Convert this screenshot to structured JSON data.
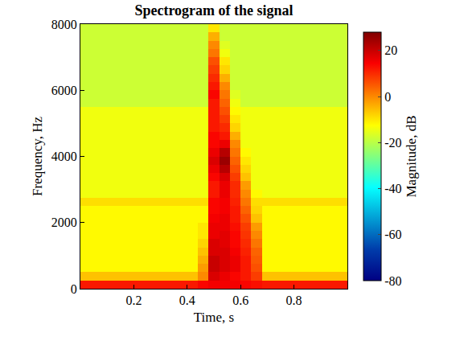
{
  "chart_data": {
    "type": "heatmap",
    "title": "Spectrogram of the signal",
    "x_label": "Time, s",
    "y_label": "Frequency, Hz",
    "x": [
      0.02,
      0.06,
      0.1,
      0.14,
      0.18,
      0.22,
      0.26,
      0.3,
      0.34,
      0.38,
      0.42,
      0.46,
      0.5,
      0.54,
      0.58,
      0.62,
      0.66,
      0.7,
      0.74,
      0.78,
      0.82,
      0.86,
      0.9,
      0.94,
      0.98
    ],
    "y": [
      125,
      375,
      625,
      875,
      1125,
      1375,
      1625,
      1875,
      2125,
      2375,
      2625,
      2875,
      3125,
      3375,
      3625,
      3875,
      4125,
      4375,
      4625,
      4875,
      5125,
      5375,
      5625,
      5875,
      6125,
      6375,
      6625,
      6875,
      7125,
      7375,
      7625,
      7875
    ],
    "z": [
      [
        12,
        12,
        12,
        12,
        12,
        12,
        12,
        12,
        12,
        12,
        12,
        14,
        15,
        15,
        15,
        14,
        13,
        12,
        12,
        12,
        12,
        12,
        12,
        12,
        12
      ],
      [
        -6,
        -6,
        -6,
        -6,
        -6,
        -6,
        -6,
        -6,
        -6,
        -6,
        -6,
        0,
        18,
        16,
        14,
        12,
        8,
        -6,
        -6,
        -6,
        -6,
        -6,
        -6,
        -6,
        -6
      ],
      [
        -12,
        -12,
        -12,
        -12,
        -12,
        -12,
        -12,
        -12,
        -12,
        -12,
        -12,
        -2,
        20,
        18,
        16,
        12,
        6,
        -12,
        -12,
        -12,
        -12,
        -12,
        -12,
        -12,
        -12
      ],
      [
        -12,
        -12,
        -12,
        -12,
        -12,
        -12,
        -12,
        -12,
        -12,
        -12,
        -12,
        -4,
        20,
        18,
        16,
        12,
        5,
        -12,
        -12,
        -12,
        -12,
        -12,
        -12,
        -12,
        -12
      ],
      [
        -12,
        -12,
        -12,
        -12,
        -12,
        -12,
        -12,
        -12,
        -12,
        -12,
        -12,
        -6,
        18,
        18,
        15,
        11,
        4,
        -12,
        -12,
        -12,
        -12,
        -12,
        -12,
        -12,
        -12
      ],
      [
        -12,
        -12,
        -12,
        -12,
        -12,
        -12,
        -12,
        -12,
        -12,
        -12,
        -12,
        -8,
        18,
        17,
        14,
        10,
        2,
        -12,
        -12,
        -12,
        -12,
        -12,
        -12,
        -12,
        -12
      ],
      [
        -12,
        -12,
        -12,
        -12,
        -12,
        -12,
        -12,
        -12,
        -12,
        -12,
        -12,
        -10,
        16,
        17,
        14,
        9,
        0,
        -12,
        -12,
        -12,
        -12,
        -12,
        -12,
        -12,
        -12
      ],
      [
        -12,
        -12,
        -12,
        -12,
        -12,
        -12,
        -12,
        -12,
        -12,
        -12,
        -12,
        -10,
        16,
        16,
        13,
        8,
        -2,
        -12,
        -12,
        -12,
        -12,
        -12,
        -12,
        -12,
        -12
      ],
      [
        -12,
        -12,
        -12,
        -12,
        -12,
        -12,
        -12,
        -12,
        -12,
        -12,
        -12,
        -12,
        15,
        16,
        12,
        6,
        -6,
        -12,
        -12,
        -12,
        -12,
        -12,
        -12,
        -12,
        -12
      ],
      [
        -12,
        -12,
        -12,
        -12,
        -12,
        -12,
        -12,
        -12,
        -12,
        -12,
        -12,
        -12,
        14,
        15,
        12,
        4,
        -8,
        -12,
        -12,
        -12,
        -12,
        -12,
        -12,
        -12,
        -12
      ],
      [
        -9,
        -9,
        -9,
        -9,
        -9,
        -9,
        -9,
        -9,
        -9,
        -9,
        -9,
        -9,
        14,
        15,
        11,
        2,
        -9,
        -9,
        -9,
        -9,
        -9,
        -9,
        -9,
        -9,
        -9
      ],
      [
        -14,
        -14,
        -14,
        -14,
        -14,
        -14,
        -14,
        -14,
        -14,
        -14,
        -14,
        -14,
        12,
        16,
        10,
        0,
        -12,
        -14,
        -14,
        -14,
        -14,
        -14,
        -14,
        -14,
        -14
      ],
      [
        -14,
        -14,
        -14,
        -14,
        -14,
        -14,
        -14,
        -14,
        -14,
        -14,
        -14,
        -14,
        12,
        16,
        10,
        -2,
        -14,
        -14,
        -14,
        -14,
        -14,
        -14,
        -14,
        -14,
        -14
      ],
      [
        -14,
        -14,
        -14,
        -14,
        -14,
        -14,
        -14,
        -14,
        -14,
        -14,
        -14,
        -14,
        14,
        18,
        8,
        -6,
        -14,
        -14,
        -14,
        -14,
        -14,
        -14,
        -14,
        -14,
        -14
      ],
      [
        -14,
        -14,
        -14,
        -14,
        -14,
        -14,
        -14,
        -14,
        -14,
        -14,
        -14,
        -14,
        16,
        22,
        6,
        -8,
        -14,
        -14,
        -14,
        -14,
        -14,
        -14,
        -14,
        -14,
        -14
      ],
      [
        -14,
        -14,
        -14,
        -14,
        -14,
        -14,
        -14,
        -14,
        -14,
        -14,
        -14,
        -14,
        18,
        25,
        4,
        -10,
        -14,
        -14,
        -14,
        -14,
        -14,
        -14,
        -14,
        -14,
        -14
      ],
      [
        -14,
        -14,
        -14,
        -14,
        -14,
        -14,
        -14,
        -14,
        -14,
        -14,
        -14,
        -14,
        16,
        22,
        2,
        -12,
        -14,
        -14,
        -14,
        -14,
        -14,
        -14,
        -14,
        -14,
        -14
      ],
      [
        -14,
        -14,
        -14,
        -14,
        -14,
        -14,
        -14,
        -14,
        -14,
        -14,
        -14,
        -14,
        14,
        16,
        0,
        -14,
        -14,
        -14,
        -14,
        -14,
        -14,
        -14,
        -14,
        -14,
        -14
      ],
      [
        -14,
        -14,
        -14,
        -14,
        -14,
        -14,
        -14,
        -14,
        -14,
        -14,
        -14,
        -14,
        14,
        12,
        -4,
        -14,
        -14,
        -14,
        -14,
        -14,
        -14,
        -14,
        -14,
        -14,
        -14
      ],
      [
        -14,
        -14,
        -14,
        -14,
        -14,
        -14,
        -14,
        -14,
        -14,
        -14,
        -14,
        -14,
        12,
        10,
        -8,
        -14,
        -14,
        -14,
        -14,
        -14,
        -14,
        -14,
        -14,
        -14,
        -14
      ],
      [
        -14,
        -14,
        -14,
        -14,
        -14,
        -14,
        -14,
        -14,
        -14,
        -14,
        -14,
        -14,
        12,
        8,
        -10,
        -14,
        -14,
        -14,
        -14,
        -14,
        -14,
        -14,
        -14,
        -14,
        -14
      ],
      [
        -14,
        -14,
        -14,
        -14,
        -14,
        -14,
        -14,
        -14,
        -14,
        -14,
        -14,
        -14,
        12,
        6,
        -12,
        -14,
        -14,
        -14,
        -14,
        -14,
        -14,
        -14,
        -14,
        -14,
        -14
      ],
      [
        -18,
        -18,
        -18,
        -18,
        -18,
        -18,
        -18,
        -18,
        -18,
        -18,
        -18,
        -18,
        12,
        4,
        -14,
        -18,
        -18,
        -18,
        -18,
        -18,
        -18,
        -18,
        -18,
        -18,
        -18
      ],
      [
        -18,
        -18,
        -18,
        -18,
        -18,
        -18,
        -18,
        -18,
        -18,
        -18,
        -18,
        -18,
        14,
        2,
        -16,
        -18,
        -18,
        -18,
        -18,
        -18,
        -18,
        -18,
        -18,
        -18,
        -18
      ],
      [
        -18,
        -18,
        -18,
        -18,
        -18,
        -18,
        -18,
        -18,
        -18,
        -18,
        -18,
        -18,
        12,
        0,
        -18,
        -18,
        -18,
        -18,
        -18,
        -18,
        -18,
        -18,
        -18,
        -18,
        -18
      ],
      [
        -18,
        -18,
        -18,
        -18,
        -18,
        -18,
        -18,
        -18,
        -18,
        -18,
        -18,
        -18,
        10,
        -4,
        -18,
        -18,
        -18,
        -18,
        -18,
        -18,
        -18,
        -18,
        -18,
        -18,
        -18
      ],
      [
        -18,
        -18,
        -18,
        -18,
        -18,
        -18,
        -18,
        -18,
        -18,
        -18,
        -18,
        -18,
        8,
        -8,
        -18,
        -18,
        -18,
        -18,
        -18,
        -18,
        -18,
        -18,
        -18,
        -18,
        -18
      ],
      [
        -18,
        -18,
        -18,
        -18,
        -18,
        -18,
        -18,
        -18,
        -18,
        -18,
        -18,
        -18,
        6,
        -10,
        -18,
        -18,
        -18,
        -18,
        -18,
        -18,
        -18,
        -18,
        -18,
        -18,
        -18
      ],
      [
        -18,
        -18,
        -18,
        -18,
        -18,
        -18,
        -18,
        -18,
        -18,
        -18,
        -18,
        -18,
        2,
        -14,
        -18,
        -18,
        -18,
        -18,
        -18,
        -18,
        -18,
        -18,
        -18,
        -18,
        -18
      ],
      [
        -18,
        -18,
        -18,
        -18,
        -18,
        -18,
        -18,
        -18,
        -18,
        -18,
        -18,
        -18,
        0,
        -16,
        -18,
        -18,
        -18,
        -18,
        -18,
        -18,
        -18,
        -18,
        -18,
        -18,
        -18
      ],
      [
        -18,
        -18,
        -18,
        -18,
        -18,
        -18,
        -18,
        -18,
        -18,
        -18,
        -18,
        -18,
        -4,
        -18,
        -18,
        -18,
        -18,
        -18,
        -18,
        -18,
        -18,
        -18,
        -18,
        -18,
        -18
      ],
      [
        -18,
        -18,
        -18,
        -18,
        -18,
        -18,
        -18,
        -18,
        -18,
        -18,
        -18,
        -18,
        -10,
        -18,
        -18,
        -18,
        -18,
        -18,
        -18,
        -18,
        -18,
        -18,
        -18,
        -18,
        -18
      ]
    ],
    "xlim": [
      0,
      1
    ],
    "xticks": [
      0.2,
      0.4,
      0.6,
      0.8
    ],
    "ylim": [
      0,
      8000
    ],
    "yticks": [
      0,
      2000,
      4000,
      6000,
      8000
    ],
    "colorbar": {
      "label": "Magnitude, dB",
      "range": [
        -80,
        28
      ],
      "ticks": [
        -80,
        -60,
        -40,
        -20,
        0,
        20
      ]
    }
  }
}
